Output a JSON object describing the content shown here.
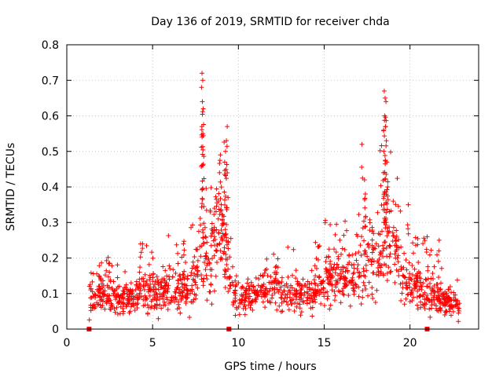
{
  "chart_data": {
    "type": "scatter",
    "title": "Day 136 of 2019, SRMTID for receiver chda",
    "xlabel": "GPS time / hours",
    "ylabel": "SRMTID / TECUs",
    "xlim": [
      0,
      24
    ],
    "ylim": [
      0,
      0.8
    ],
    "x_ticks": [
      0,
      5,
      10,
      15,
      20
    ],
    "x_tick_labels": [
      "0",
      "5",
      "10",
      "15",
      "20"
    ],
    "y_ticks": [
      0,
      0.1,
      0.2,
      0.3,
      0.4,
      0.5,
      0.6,
      0.7,
      0.8
    ],
    "y_tick_labels": [
      "0",
      "0.1",
      "0.2",
      "0.3",
      "0.4",
      "0.5",
      "0.6",
      "0.7",
      "0.8"
    ],
    "grid": true,
    "marker": "+",
    "color": "#ff0000",
    "x_range_of_data": [
      1.3,
      22.9
    ],
    "gap_markers_x": [
      1.3,
      9.45,
      21.0
    ],
    "series": [
      {
        "name": "SRMTID",
        "envelope": [
          {
            "x": 1.3,
            "y": 0.09
          },
          {
            "x": 2.0,
            "y": 0.1
          },
          {
            "x": 3.0,
            "y": 0.085
          },
          {
            "x": 4.0,
            "y": 0.09
          },
          {
            "x": 4.5,
            "y": 0.12
          },
          {
            "x": 5.0,
            "y": 0.1
          },
          {
            "x": 6.0,
            "y": 0.12
          },
          {
            "x": 7.0,
            "y": 0.11
          },
          {
            "x": 7.5,
            "y": 0.14
          },
          {
            "x": 7.8,
            "y": 0.22
          },
          {
            "x": 8.2,
            "y": 0.17
          },
          {
            "x": 8.5,
            "y": 0.2
          },
          {
            "x": 8.8,
            "y": 0.26
          },
          {
            "x": 9.2,
            "y": 0.26
          },
          {
            "x": 9.6,
            "y": 0.1
          },
          {
            "x": 10.0,
            "y": 0.08
          },
          {
            "x": 11.0,
            "y": 0.1
          },
          {
            "x": 12.0,
            "y": 0.13
          },
          {
            "x": 13.0,
            "y": 0.1
          },
          {
            "x": 14.0,
            "y": 0.09
          },
          {
            "x": 14.5,
            "y": 0.11
          },
          {
            "x": 15.0,
            "y": 0.14
          },
          {
            "x": 16.0,
            "y": 0.15
          },
          {
            "x": 17.0,
            "y": 0.14
          },
          {
            "x": 17.4,
            "y": 0.2
          },
          {
            "x": 18.0,
            "y": 0.19
          },
          {
            "x": 18.5,
            "y": 0.25
          },
          {
            "x": 18.8,
            "y": 0.26
          },
          {
            "x": 19.5,
            "y": 0.17
          },
          {
            "x": 20.0,
            "y": 0.12
          },
          {
            "x": 21.0,
            "y": 0.11
          },
          {
            "x": 22.0,
            "y": 0.08
          },
          {
            "x": 22.9,
            "y": 0.06
          }
        ],
        "peaks": [
          {
            "x": 7.88,
            "y": 0.72
          },
          {
            "x": 7.92,
            "y": 0.7
          },
          {
            "x": 7.85,
            "y": 0.68
          },
          {
            "x": 7.9,
            "y": 0.64
          },
          {
            "x": 7.95,
            "y": 0.62
          },
          {
            "x": 7.87,
            "y": 0.57
          },
          {
            "x": 7.93,
            "y": 0.55
          },
          {
            "x": 9.35,
            "y": 0.57
          },
          {
            "x": 9.3,
            "y": 0.53
          },
          {
            "x": 9.25,
            "y": 0.5
          },
          {
            "x": 9.2,
            "y": 0.47
          },
          {
            "x": 8.9,
            "y": 0.44
          },
          {
            "x": 8.95,
            "y": 0.49
          },
          {
            "x": 17.2,
            "y": 0.52
          },
          {
            "x": 17.35,
            "y": 0.42
          },
          {
            "x": 17.4,
            "y": 0.38
          },
          {
            "x": 18.5,
            "y": 0.67
          },
          {
            "x": 18.55,
            "y": 0.65
          },
          {
            "x": 18.6,
            "y": 0.64
          },
          {
            "x": 18.52,
            "y": 0.6
          },
          {
            "x": 18.58,
            "y": 0.57
          },
          {
            "x": 18.62,
            "y": 0.53
          },
          {
            "x": 18.48,
            "y": 0.5
          },
          {
            "x": 18.65,
            "y": 0.47
          },
          {
            "x": 18.45,
            "y": 0.44
          },
          {
            "x": 18.7,
            "y": 0.4
          },
          {
            "x": 19.9,
            "y": 0.35
          },
          {
            "x": 9.0,
            "y": 0.35
          },
          {
            "x": 8.6,
            "y": 0.34
          },
          {
            "x": 21.7,
            "y": 0.25
          },
          {
            "x": 21.0,
            "y": 0.26
          },
          {
            "x": 4.3,
            "y": 0.24
          },
          {
            "x": 6.8,
            "y": 0.24
          }
        ]
      }
    ]
  }
}
